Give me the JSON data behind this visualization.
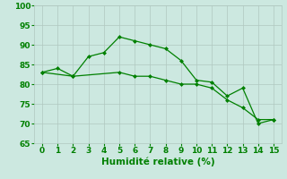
{
  "title": "",
  "xlabel": "Humidité relative (%)",
  "ylabel": "",
  "xlim": [
    -0.5,
    15.5
  ],
  "ylim": [
    65,
    100
  ],
  "yticks": [
    65,
    70,
    75,
    80,
    85,
    90,
    95,
    100
  ],
  "xticks": [
    0,
    1,
    2,
    3,
    4,
    5,
    6,
    7,
    8,
    9,
    10,
    11,
    12,
    13,
    14,
    15
  ],
  "line1_x": [
    0,
    1,
    2,
    3,
    4,
    5,
    6,
    7,
    8,
    9,
    10,
    11,
    12,
    13,
    14,
    15
  ],
  "line1_y": [
    83,
    84,
    82,
    87,
    88,
    92,
    91,
    90,
    89,
    86,
    81,
    80.5,
    77,
    79,
    70,
    71
  ],
  "line2_x": [
    0,
    2,
    5,
    6,
    7,
    8,
    9,
    10,
    11,
    12,
    13,
    14,
    15
  ],
  "line2_y": [
    83,
    82,
    83,
    82,
    82,
    81,
    80,
    80,
    79,
    76,
    74,
    71,
    71
  ],
  "line_color": "#008000",
  "marker": "D",
  "marker_size": 2.5,
  "line_width": 0.9,
  "bg_color": "#cce8e0",
  "grid_color": "#b0c8c0",
  "label_color": "#008000",
  "tick_color": "#008000",
  "xlabel_fontsize": 7.5,
  "tick_fontsize": 6.5
}
